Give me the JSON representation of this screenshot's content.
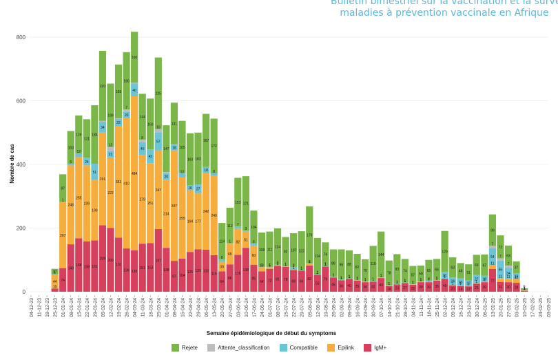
{
  "header": {
    "line1": "Bulletin bimestriel sur la vaccination et la surveillance des",
    "line2": "maladies à prévention vaccinale en Afrique"
  },
  "colors": {
    "Rejete": "#7ab648",
    "Attente_classification": "#bdbdbd",
    "Compatible": "#6cc5d4",
    "Epilink": "#f6ad3c",
    "IgM+": "#d7405c"
  },
  "chart_data": {
    "type": "bar",
    "stacked": true,
    "ylabel": "Nombre de cas",
    "xlabel": "Semaine épidémiologique de début du symptoms",
    "ylim": [
      0,
      850
    ],
    "yticks": [
      0,
      200,
      400,
      600,
      800
    ],
    "tick_labels": [
      "04-12-23",
      "11-12-23",
      "18-12-23",
      "25-12-23",
      "01-01-24",
      "08-01-24",
      "15-01-24",
      "22-01-24",
      "29-01-24",
      "05-02-24",
      "12-02-24",
      "19-02-24",
      "26-02-24",
      "04-03-24",
      "11-03-24",
      "18-03-24",
      "25-03-24",
      "01-04-24",
      "08-04-24",
      "15-04-24",
      "22-04-24",
      "29-04-24",
      "06-05-24",
      "13-05-24",
      "20-05-24",
      "27-05-24",
      "03-06-24",
      "10-06-24",
      "17-06-24",
      "24-06-24",
      "01-07-24",
      "08-07-24",
      "15-07-24",
      "22-07-24",
      "29-07-24",
      "05-08-24",
      "12-08-24",
      "19-08-24",
      "26-08-24",
      "02-09-24",
      "09-09-24",
      "16-09-24",
      "23-09-24",
      "30-09-24",
      "07-10-24",
      "14-10-24",
      "21-10-24",
      "28-10-24",
      "04-11-24",
      "11-11-24",
      "18-11-24",
      "25-11-24",
      "02-12-24",
      "09-12-24",
      "16-12-24",
      "23-12-24",
      "30-12-24",
      "06-01-25",
      "13-01-25",
      "20-01-25",
      "27-01-25",
      "03-02-25",
      "10-02-25",
      "17-02-25",
      "24-02-25",
      "03-03-25"
    ],
    "bar_start_index": 3,
    "legend": [
      "Rejete",
      "Attente_classification",
      "Compatible",
      "Epilink",
      "IgM+"
    ],
    "stack_order": [
      "IgM+",
      "Epilink",
      "Compatible",
      "Attente_classification",
      "Rejete"
    ],
    "series": [
      {
        "name": "IgM+",
        "values": [
          10,
          74,
          149,
          168,
          158,
          161,
          209,
          200,
          170,
          136,
          130,
          151,
          153,
          197,
          138,
          97,
          104,
          125,
          133,
          132,
          115,
          64,
          86,
          116,
          138,
          85,
          64,
          72,
          81,
          78,
          68,
          66,
          82,
          53,
          79,
          45,
          36,
          40,
          35,
          30,
          32,
          43,
          18,
          23,
          27,
          22,
          30,
          30,
          35,
          40,
          20,
          18,
          17,
          25,
          30,
          72,
          31,
          30,
          28,
          3
        ]
      },
      {
        "name": "Epilink",
        "values": [
          44,
          207,
          248,
          255,
          239,
          190,
          291,
          222,
          351,
          410,
          484,
          279,
          251,
          247,
          214,
          347,
          255,
          194,
          177,
          242,
          249,
          30,
          65,
          82,
          51,
          60,
          13,
          5,
          1,
          1,
          1,
          1,
          6,
          1,
          1,
          1,
          1,
          1,
          1,
          1,
          1,
          1,
          1,
          1,
          1,
          1,
          1,
          1,
          1,
          1,
          1,
          1,
          1,
          1,
          1,
          11,
          11,
          11,
          11,
          1
        ]
      },
      {
        "name": "Compatible",
        "values": [
          1,
          1,
          5,
          12,
          24,
          51,
          34,
          21,
          22,
          20,
          40,
          40,
          43,
          57,
          20,
          18,
          12,
          16,
          27,
          18,
          8,
          8,
          1,
          7,
          3,
          6,
          1,
          1,
          3,
          1,
          8,
          1,
          1,
          1,
          1,
          1,
          1,
          1,
          1,
          1,
          1,
          1,
          1,
          1,
          1,
          1,
          1,
          4,
          1,
          21,
          24,
          23,
          17,
          27,
          19,
          54,
          56,
          34,
          19,
          1
        ]
      },
      {
        "name": "Attente_classification",
        "values": [
          0,
          0,
          0,
          0,
          0,
          0,
          3,
          12,
          2,
          7,
          3,
          8,
          0,
          10,
          4,
          1,
          1,
          0,
          0,
          0,
          0,
          0,
          0,
          0,
          0,
          0,
          0,
          0,
          0,
          0,
          0,
          0,
          0,
          0,
          0,
          0,
          0,
          0,
          0,
          0,
          0,
          0,
          0,
          0,
          0,
          0,
          0,
          0,
          0,
          0,
          0,
          0,
          0,
          0,
          0,
          7,
          7,
          7,
          0,
          0
        ]
      },
      {
        "name": "Rejete",
        "values": [
          17,
          87,
          103,
          119,
          121,
          184,
          220,
          199,
          169,
          180,
          160,
          144,
          160,
          225,
          147,
          131,
          165,
          163,
          163,
          167,
          172,
          114,
          112,
          153,
          171,
          104,
          108,
          111,
          114,
          92,
          107,
          122,
          179,
          114,
          74,
          86,
          95,
          88,
          82,
          70,
          110,
          144,
          78,
          93,
          74,
          57,
          50,
          65,
          66,
          129,
          63,
          48,
          51,
          63,
          67,
          99,
          72,
          63,
          37,
          6
        ]
      }
    ]
  }
}
